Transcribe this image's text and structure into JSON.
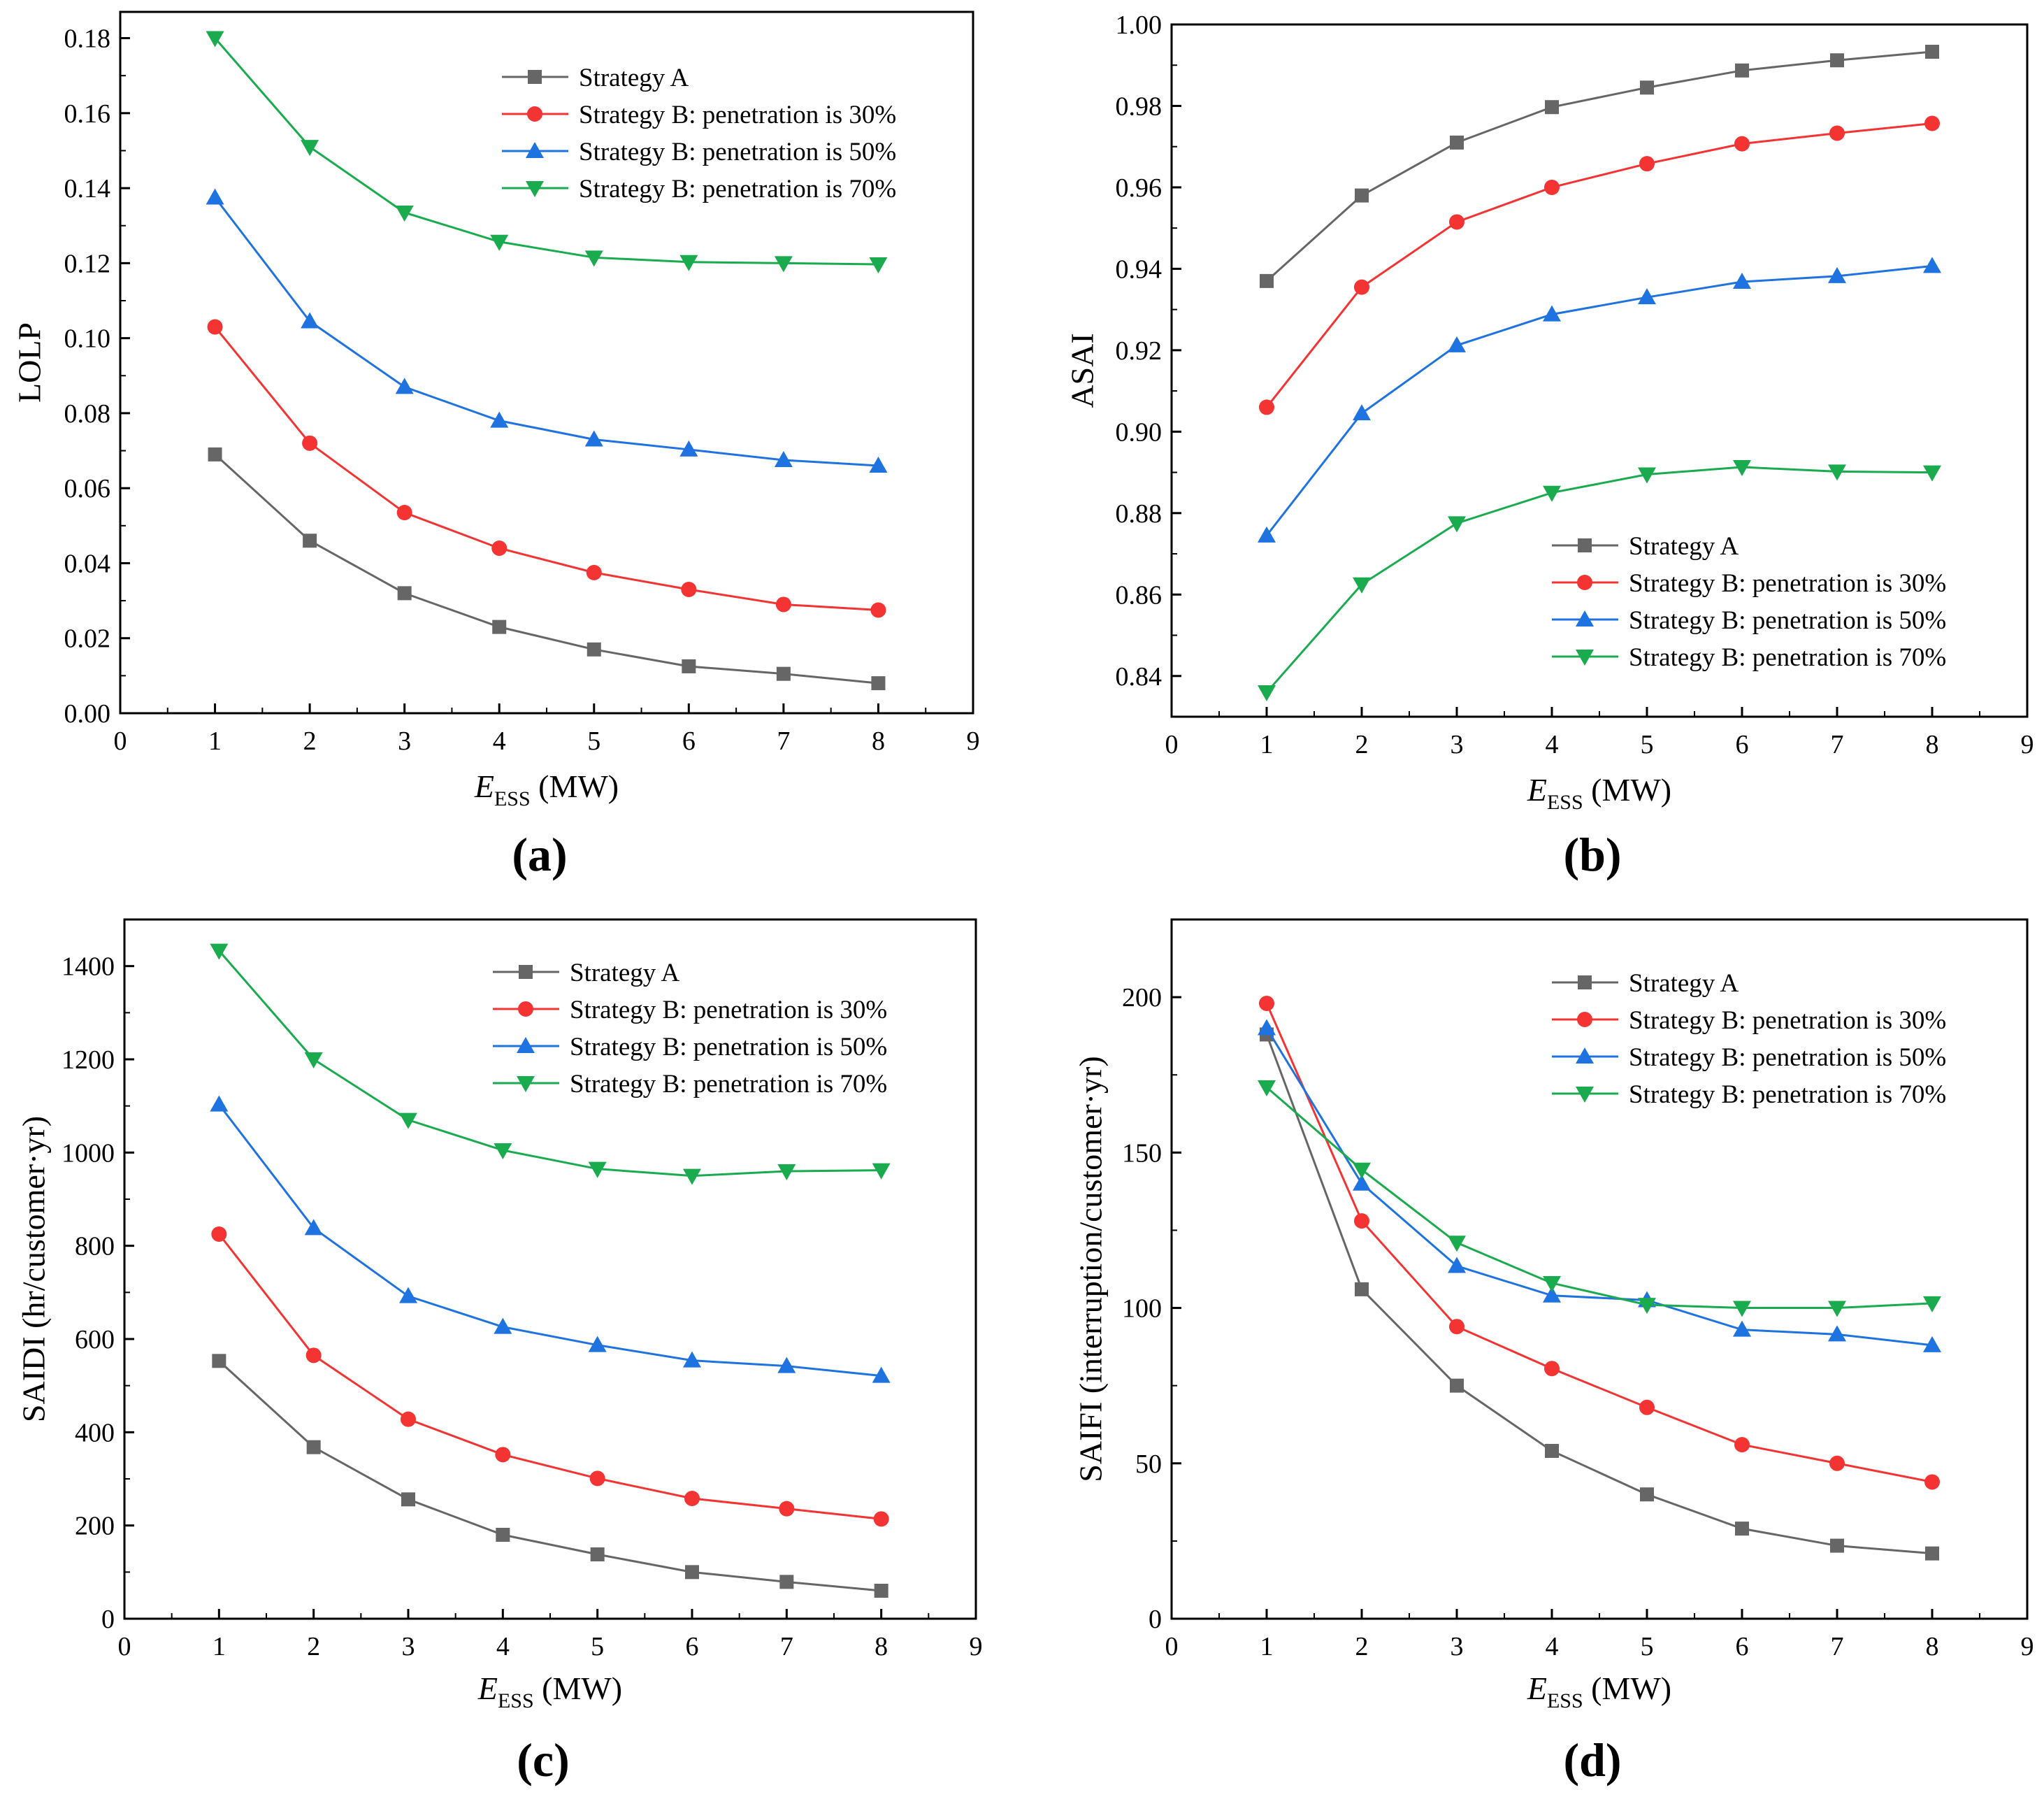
{
  "chart_data": [
    {
      "type": "line",
      "panel_label": "(a)",
      "xlabel_main": "E",
      "xlabel_sub": "ESS",
      "xlabel_unit": " (MW)",
      "ylabel": "LOLP",
      "xlim": [
        0,
        9
      ],
      "ylim": [
        0,
        0.187
      ],
      "xticks": [
        0,
        1,
        2,
        3,
        4,
        5,
        6,
        7,
        8,
        9
      ],
      "xtick_labels": [
        "0",
        "1",
        "2",
        "3",
        "4",
        "5",
        "6",
        "7",
        "8",
        "9"
      ],
      "yticks": [
        0,
        0.02,
        0.04,
        0.06,
        0.08,
        0.1,
        0.12,
        0.14,
        0.16,
        0.18
      ],
      "ytick_labels": [
        "0.00",
        "0.02",
        "0.04",
        "0.06",
        "0.08",
        "0.10",
        "0.12",
        "0.14",
        "0.16",
        "0.18"
      ],
      "legend_position": "top-right",
      "x": [
        1,
        2,
        3,
        4,
        5,
        6,
        7,
        8
      ],
      "series": [
        {
          "name": "Strategy A",
          "color": "#666666",
          "marker": "square",
          "values": [
            0.069,
            0.046,
            0.032,
            0.023,
            0.017,
            0.0125,
            0.0105,
            0.008
          ]
        },
        {
          "name": "Strategy B: penetration is 30%",
          "color": "#f43333",
          "marker": "circle",
          "values": [
            0.103,
            0.072,
            0.0535,
            0.044,
            0.0375,
            0.033,
            0.029,
            0.0275
          ]
        },
        {
          "name": "Strategy B: penetration is 50%",
          "color": "#1f73e0",
          "marker": "triangle-up",
          "values": [
            0.1375,
            0.1045,
            0.087,
            0.078,
            0.073,
            0.0703,
            0.0675,
            0.066
          ]
        },
        {
          "name": "Strategy B: penetration is 70%",
          "color": "#1aab4f",
          "marker": "triangle-down",
          "values": [
            0.18,
            0.151,
            0.1335,
            0.1257,
            0.1215,
            0.1203,
            0.12,
            0.1197
          ]
        }
      ]
    },
    {
      "type": "line",
      "panel_label": "(b)",
      "xlabel_main": "E",
      "xlabel_sub": "ESS",
      "xlabel_unit": " (MW)",
      "ylabel": "ASAI",
      "xlim": [
        0,
        9
      ],
      "ylim": [
        0.83,
        1.0
      ],
      "xticks": [
        0,
        1,
        2,
        3,
        4,
        5,
        6,
        7,
        8,
        9
      ],
      "xtick_labels": [
        "0",
        "1",
        "2",
        "3",
        "4",
        "5",
        "6",
        "7",
        "8",
        "9"
      ],
      "yticks": [
        0.84,
        0.86,
        0.88,
        0.9,
        0.92,
        0.94,
        0.96,
        0.98,
        1.0
      ],
      "ytick_labels": [
        "0.84",
        "0.86",
        "0.88",
        "0.90",
        "0.92",
        "0.94",
        "0.96",
        "0.98",
        "1.00"
      ],
      "legend_position": "bottom-right",
      "x": [
        1,
        2,
        3,
        4,
        5,
        6,
        7,
        8
      ],
      "series": [
        {
          "name": "Strategy A",
          "color": "#666666",
          "marker": "square",
          "values": [
            0.937,
            0.958,
            0.971,
            0.9797,
            0.9845,
            0.9887,
            0.9912,
            0.9933
          ]
        },
        {
          "name": "Strategy B: penetration is 30%",
          "color": "#f43333",
          "marker": "circle",
          "values": [
            0.906,
            0.9355,
            0.9515,
            0.96,
            0.9658,
            0.9707,
            0.9733,
            0.9757
          ]
        },
        {
          "name": "Strategy B: penetration is 50%",
          "color": "#1f73e0",
          "marker": "triangle-up",
          "values": [
            0.8745,
            0.9045,
            0.9212,
            0.9288,
            0.933,
            0.9368,
            0.9382,
            0.9407
          ]
        },
        {
          "name": "Strategy B: penetration is 70%",
          "color": "#1aab4f",
          "marker": "triangle-down",
          "values": [
            0.836,
            0.8625,
            0.8775,
            0.885,
            0.8895,
            0.8913,
            0.8902,
            0.89
          ]
        }
      ]
    },
    {
      "type": "line",
      "panel_label": "(c)",
      "xlabel_main": "E",
      "xlabel_sub": "ESS",
      "xlabel_unit": " (MW)",
      "ylabel": "SAIDI (hr/customer·yr)",
      "xlim": [
        0,
        9
      ],
      "ylim": [
        0,
        1500
      ],
      "xticks": [
        0,
        1,
        2,
        3,
        4,
        5,
        6,
        7,
        8,
        9
      ],
      "xtick_labels": [
        "0",
        "1",
        "2",
        "3",
        "4",
        "5",
        "6",
        "7",
        "8",
        "9"
      ],
      "yticks": [
        0,
        200,
        400,
        600,
        800,
        1000,
        1200,
        1400
      ],
      "ytick_labels": [
        "0",
        "200",
        "400",
        "600",
        "800",
        "1000",
        "1200",
        "1400"
      ],
      "legend_position": "top-right",
      "x": [
        1,
        2,
        3,
        4,
        5,
        6,
        7,
        8
      ],
      "series": [
        {
          "name": "Strategy A",
          "color": "#666666",
          "marker": "square",
          "values": [
            553,
            368,
            256,
            180,
            138,
            100,
            79,
            60
          ]
        },
        {
          "name": "Strategy B: penetration is 30%",
          "color": "#f43333",
          "marker": "circle",
          "values": [
            825,
            565,
            428,
            352,
            301,
            258,
            236,
            214
          ]
        },
        {
          "name": "Strategy B: penetration is 50%",
          "color": "#1f73e0",
          "marker": "triangle-up",
          "values": [
            1103,
            838,
            692,
            626,
            587,
            554,
            542,
            521
          ]
        },
        {
          "name": "Strategy B: penetration is 70%",
          "color": "#1aab4f",
          "marker": "triangle-down",
          "values": [
            1433,
            1200,
            1070,
            1005,
            965,
            950,
            960,
            962
          ]
        }
      ]
    },
    {
      "type": "line",
      "panel_label": "(d)",
      "xlabel_main": "E",
      "xlabel_sub": "ESS",
      "xlabel_unit": " (MW)",
      "ylabel": "SAIFI (interruption/customer·yr)",
      "xlim": [
        0,
        9
      ],
      "ylim": [
        0,
        225
      ],
      "xticks": [
        0,
        1,
        2,
        3,
        4,
        5,
        6,
        7,
        8,
        9
      ],
      "xtick_labels": [
        "0",
        "1",
        "2",
        "3",
        "4",
        "5",
        "6",
        "7",
        "8",
        "9"
      ],
      "yticks": [
        0,
        50,
        100,
        150,
        200
      ],
      "ytick_labels": [
        "0",
        "50",
        "100",
        "150",
        "200"
      ],
      "legend_position": "top-right",
      "x": [
        1,
        2,
        3,
        4,
        5,
        6,
        7,
        8
      ],
      "series": [
        {
          "name": "Strategy A",
          "color": "#666666",
          "marker": "square",
          "values": [
            188,
            106,
            75,
            54,
            40,
            29,
            23.5,
            21
          ]
        },
        {
          "name": "Strategy B: penetration is 30%",
          "color": "#f43333",
          "marker": "circle",
          "values": [
            198,
            128,
            94,
            80.5,
            68,
            56,
            50,
            44
          ]
        },
        {
          "name": "Strategy B: penetration is 50%",
          "color": "#1f73e0",
          "marker": "triangle-up",
          "values": [
            190,
            140,
            113.5,
            104,
            102.5,
            93,
            91.5,
            88
          ]
        },
        {
          "name": "Strategy B: penetration is 70%",
          "color": "#1aab4f",
          "marker": "triangle-down",
          "values": [
            171,
            144.5,
            121,
            108,
            101,
            100,
            100,
            101.5
          ]
        }
      ]
    }
  ]
}
